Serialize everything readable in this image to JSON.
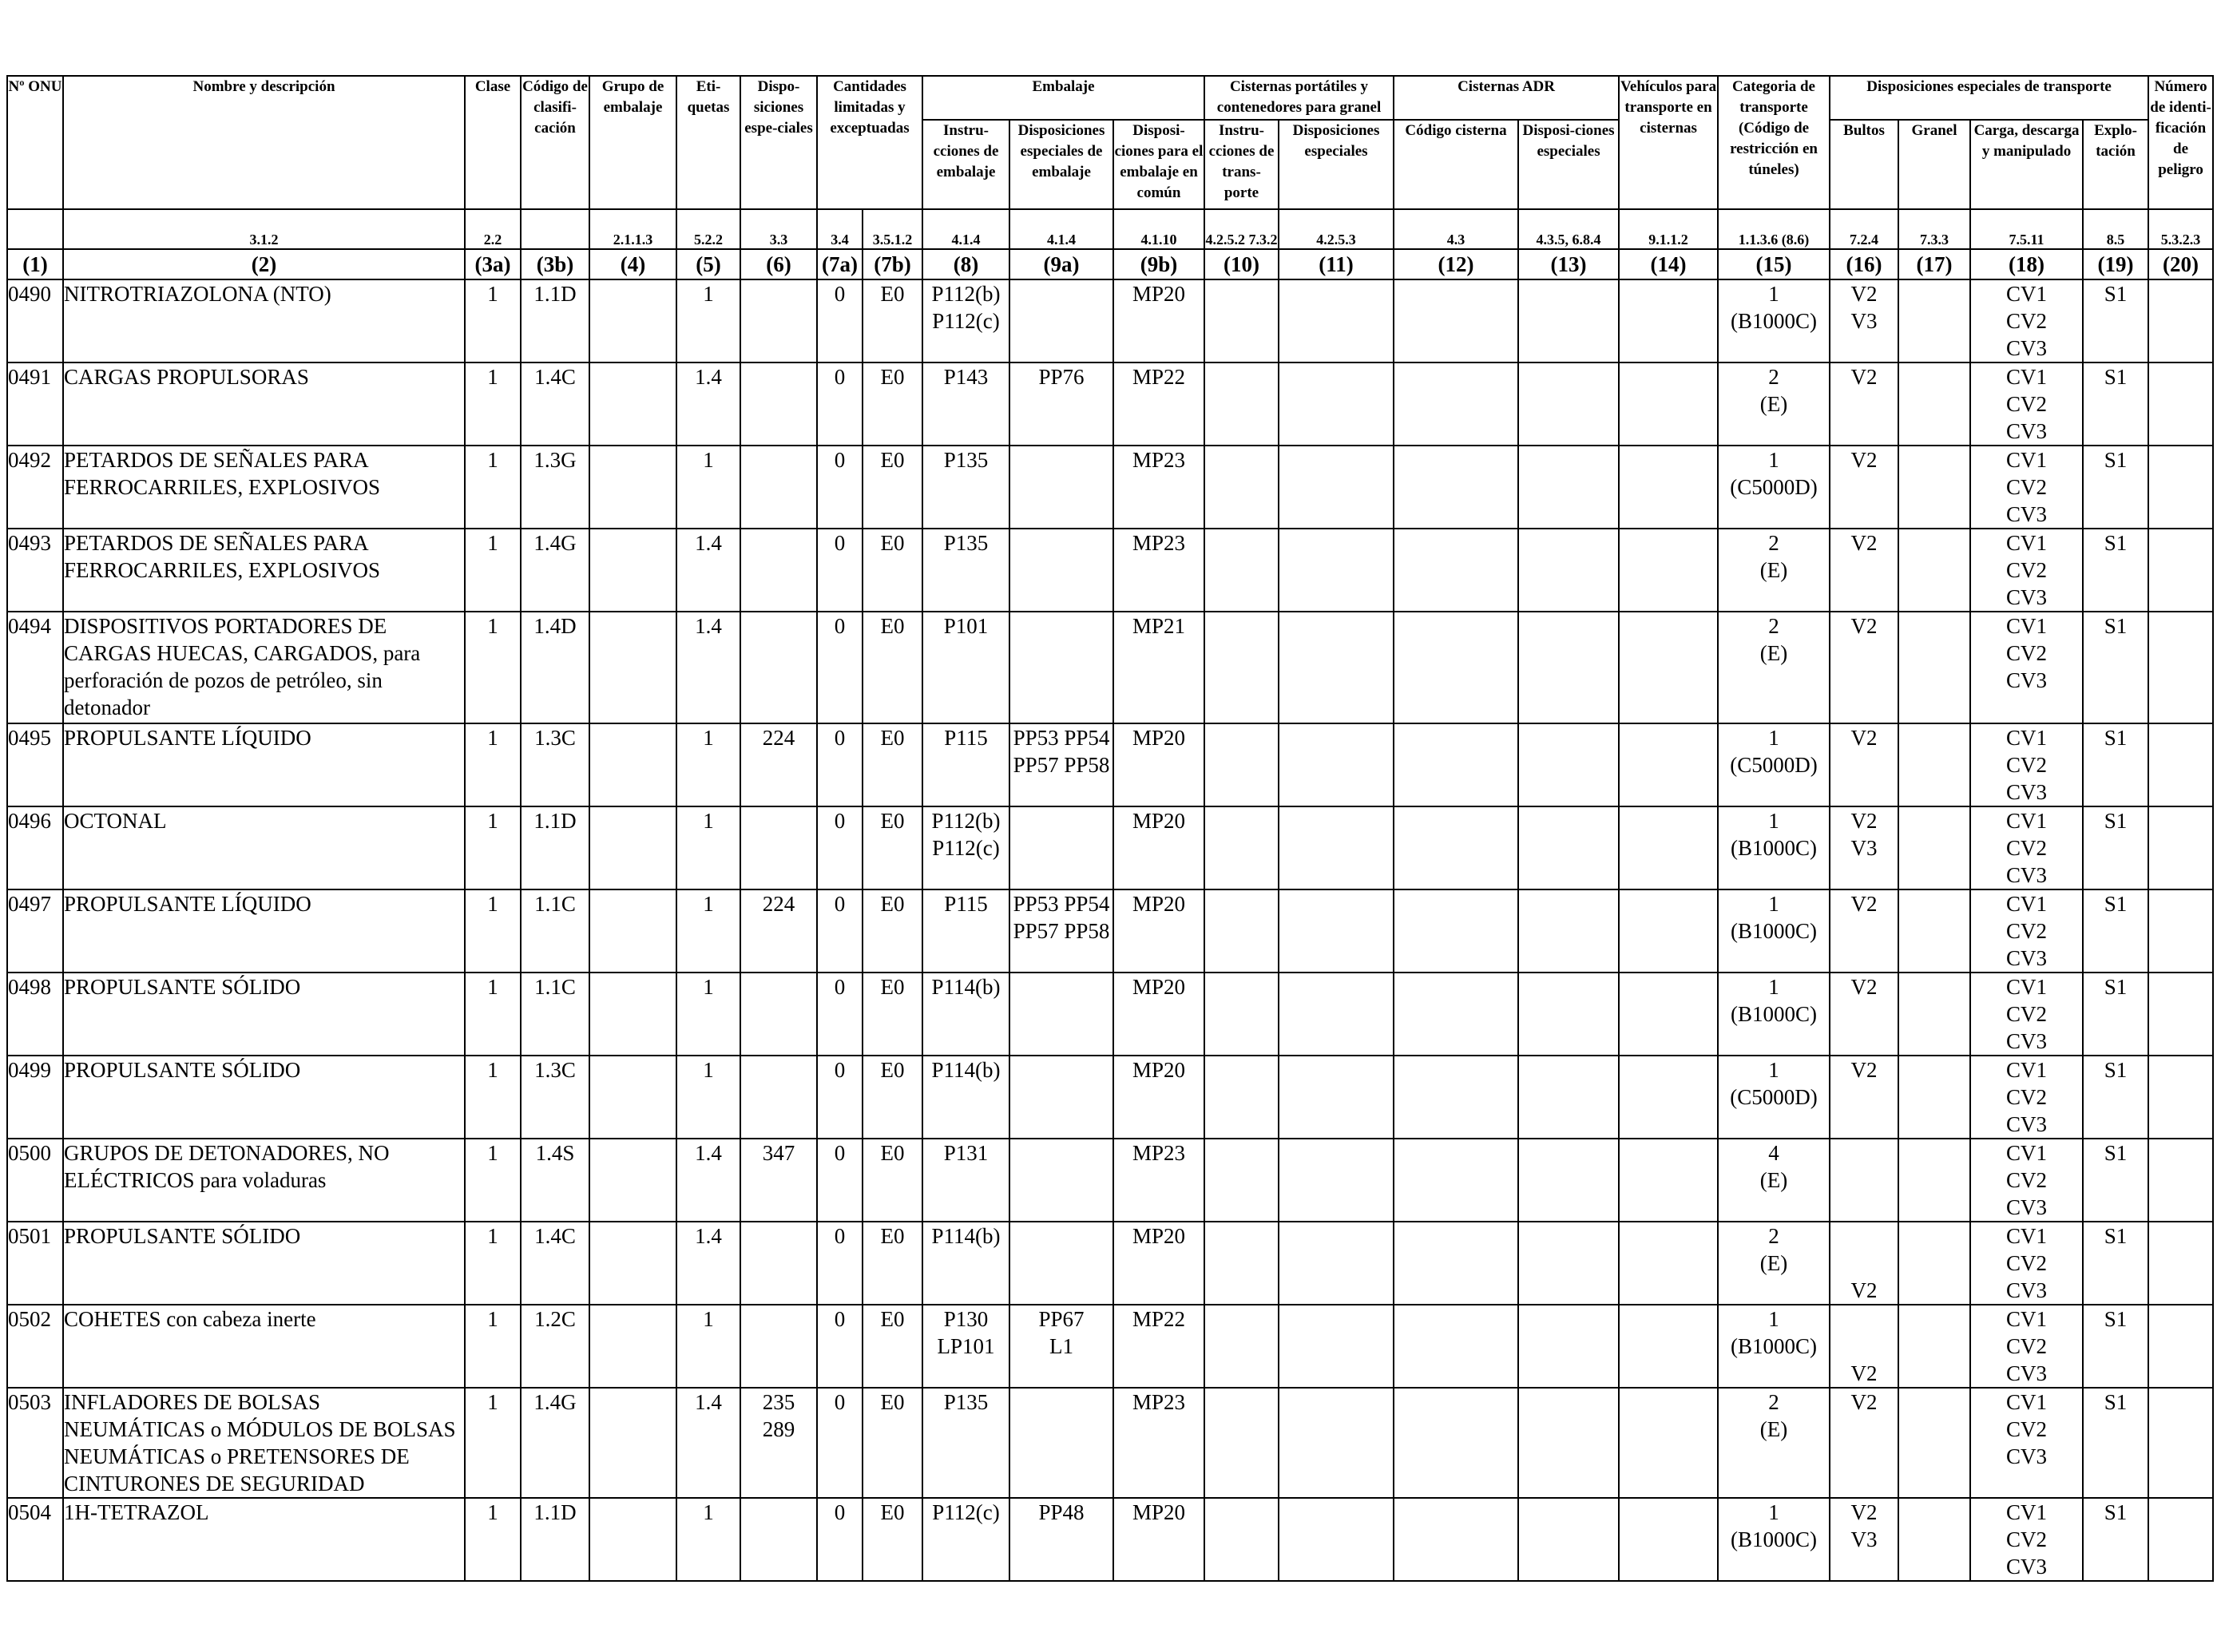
{
  "headers": {
    "un": "Nº ONU",
    "name": "Nombre y descripción",
    "class": "Clase",
    "code": "Código de clasifi-cación",
    "pg": "Grupo de embalaje",
    "labels": "Eti-quetas",
    "special": "Dispo-siciones espe-ciales",
    "lq_group": "Cantidades limitadas y exceptuadas",
    "packaging_group": "Embalaje",
    "pack_instr": "Instru-cciones de embalaje",
    "pack_special": "Disposiciones especiales de embalaje",
    "pack_mixed": "Disposi-ciones para el embalaje en común",
    "portable_group": "Cisternas portátiles y contenedores para granel",
    "portable_instr": "Instru-cciones de trans-porte",
    "portable_special": "Disposiciones especiales",
    "adr_group": "Cisternas ADR",
    "adr_code": "Código cisterna",
    "adr_special": "Disposi-ciones especiales",
    "vehicles": "Vehículos para transporte en cisternas",
    "category": "Categoria de transporte (Código de restricción en túneles)",
    "spec_group": "Disposiciones especiales de transporte",
    "spec_packages": "Bultos",
    "spec_bulk": "Granel",
    "spec_loading": "Carga, descarga y manipulado",
    "spec_operation": "Explo-tación",
    "hazard_id": "Número de identi-ficación de peligro"
  },
  "refs": {
    "name": "3.1.2",
    "class": "2.2",
    "pg": "2.1.1.3",
    "labels": "5.2.2",
    "special": "3.3",
    "lq": "3.4",
    "eq": "3.5.1.2",
    "pack_instr": "4.1.4",
    "pack_special": "4.1.4",
    "pack_mixed": "4.1.10",
    "portable_instr": "4.2.5.2 7.3.2",
    "portable_special": "4.2.5.3",
    "adr_code": "4.3",
    "adr_special": "4.3.5, 6.8.4",
    "vehicles": "9.1.1.2",
    "category": "1.1.3.6 (8.6)",
    "spec_packages": "7.2.4",
    "spec_bulk": "7.3.3",
    "spec_loading": "7.5.11",
    "spec_operation": "8.5",
    "hazard_id": "5.3.2.3"
  },
  "colnums": [
    "(1)",
    "(2)",
    "(3a)",
    "(3b)",
    "(4)",
    "(5)",
    "(6)",
    "(7a)",
    "(7b)",
    "(8)",
    "(9a)",
    "(9b)",
    "(10)",
    "(11)",
    "(12)",
    "(13)",
    "(14)",
    "(15)",
    "(16)",
    "(17)",
    "(18)",
    "(19)",
    "(20)"
  ],
  "rows": [
    {
      "c": [
        "0490",
        "NITROTRIAZOLONA (NTO)",
        "1",
        "1.1D",
        "",
        "1",
        "",
        "0",
        "E0",
        "P112(b)\nP112(c)",
        "",
        "MP20",
        "",
        "",
        "",
        "",
        "",
        "1\n(B1000C)",
        "V2\nV3",
        "",
        "CV1\nCV2\nCV3",
        "S1",
        ""
      ]
    },
    {
      "c": [
        "0491",
        "CARGAS PROPULSORAS",
        "1",
        "1.4C",
        "",
        "1.4",
        "",
        "0",
        "E0",
        "P143",
        "PP76",
        "MP22",
        "",
        "",
        "",
        "",
        "",
        "2\n(E)",
        "V2",
        "",
        "CV1\nCV2\nCV3",
        "S1",
        ""
      ]
    },
    {
      "c": [
        "0492",
        "PETARDOS DE SEÑALES PARA FERROCARRILES, EXPLOSIVOS",
        "1",
        "1.3G",
        "",
        "1",
        "",
        "0",
        "E0",
        "P135",
        "",
        "MP23",
        "",
        "",
        "",
        "",
        "",
        "1\n(C5000D)",
        "V2",
        "",
        "CV1\nCV2\nCV3",
        "S1",
        ""
      ]
    },
    {
      "c": [
        "0493",
        "PETARDOS DE SEÑALES PARA FERROCARRILES, EXPLOSIVOS",
        "1",
        "1.4G",
        "",
        "1.4",
        "",
        "0",
        "E0",
        "P135",
        "",
        "MP23",
        "",
        "",
        "",
        "",
        "",
        "2\n(E)",
        "V2",
        "",
        "CV1\nCV2\nCV3",
        "S1",
        ""
      ]
    },
    {
      "c": [
        "0494",
        "DISPOSITIVOS PORTADORES DE CARGAS HUECAS, CARGADOS, para perforación de pozos de petróleo, sin detonador",
        "1",
        "1.4D",
        "",
        "1.4",
        "",
        "0",
        "E0",
        "P101",
        "",
        "MP21",
        "",
        "",
        "",
        "",
        "",
        "2\n(E)",
        "V2",
        "",
        "CV1\nCV2\nCV3",
        "S1",
        ""
      ]
    },
    {
      "c": [
        "0495",
        "PROPULSANTE LÍQUIDO",
        "1",
        "1.3C",
        "",
        "1",
        "224",
        "0",
        "E0",
        "P115",
        "PP53 PP54\nPP57 PP58",
        "MP20",
        "",
        "",
        "",
        "",
        "",
        "1\n(C5000D)",
        "V2",
        "",
        "CV1\nCV2\nCV3",
        "S1",
        ""
      ]
    },
    {
      "c": [
        "0496",
        "OCTONAL",
        "1",
        "1.1D",
        "",
        "1",
        "",
        "0",
        "E0",
        "P112(b)\nP112(c)",
        "",
        "MP20",
        "",
        "",
        "",
        "",
        "",
        "1\n(B1000C)",
        "V2\nV3",
        "",
        "CV1\nCV2\nCV3",
        "S1",
        ""
      ]
    },
    {
      "c": [
        "0497",
        "PROPULSANTE LÍQUIDO",
        "1",
        "1.1C",
        "",
        "1",
        "224",
        "0",
        "E0",
        "P115",
        "PP53 PP54\nPP57 PP58",
        "MP20",
        "",
        "",
        "",
        "",
        "",
        "1\n(B1000C)",
        "V2",
        "",
        "CV1\nCV2\nCV3",
        "S1",
        ""
      ]
    },
    {
      "c": [
        "0498",
        "PROPULSANTE SÓLIDO",
        "1",
        "1.1C",
        "",
        "1",
        "",
        "0",
        "E0",
        "P114(b)",
        "",
        "MP20",
        "",
        "",
        "",
        "",
        "",
        "1\n(B1000C)",
        "V2",
        "",
        "CV1\nCV2\nCV3",
        "S1",
        ""
      ]
    },
    {
      "c": [
        "0499",
        "PROPULSANTE SÓLIDO",
        "1",
        "1.3C",
        "",
        "1",
        "",
        "0",
        "E0",
        "P114(b)",
        "",
        "MP20",
        "",
        "",
        "",
        "",
        "",
        "1\n(C5000D)",
        "V2",
        "",
        "CV1\nCV2\nCV3",
        "S1",
        ""
      ]
    },
    {
      "c": [
        "0500",
        "GRUPOS DE DETONADORES, NO ELÉCTRICOS para voladuras",
        "1",
        "1.4S",
        "",
        "1.4",
        "347",
        "0",
        "E0",
        "P131",
        "",
        "MP23",
        "",
        "",
        "",
        "",
        "",
        "4\n(E)",
        "",
        "",
        "CV1\nCV2\nCV3",
        "S1",
        ""
      ]
    },
    {
      "c": [
        "0501",
        "PROPULSANTE SÓLIDO",
        "1",
        "1.4C",
        "",
        "1.4",
        "",
        "0",
        "E0",
        "P114(b)",
        "",
        "MP20",
        "",
        "",
        "",
        "",
        "",
        "2\n(E)",
        "\n\nV2",
        "",
        "CV1\nCV2\nCV3",
        "S1",
        ""
      ]
    },
    {
      "c": [
        "0502",
        "COHETES con cabeza inerte",
        "1",
        "1.2C",
        "",
        "1",
        "",
        "0",
        "E0",
        "P130\nLP101",
        "PP67\nL1",
        "MP22",
        "",
        "",
        "",
        "",
        "",
        "1\n(B1000C)",
        "\n\nV2",
        "",
        "CV1\nCV2\nCV3",
        "S1",
        ""
      ]
    },
    {
      "c": [
        "0503",
        "INFLADORES DE BOLSAS NEUMÁTICAS o MÓDULOS DE BOLSAS NEUMÁTICAS o PRETENSORES DE CINTURONES DE SEGURIDAD",
        "1",
        "1.4G",
        "",
        "1.4",
        "235\n289",
        "0",
        "E0",
        "P135",
        "",
        "MP23",
        "",
        "",
        "",
        "",
        "",
        "2\n(E)",
        "V2",
        "",
        "CV1\nCV2\nCV3",
        "S1",
        ""
      ]
    },
    {
      "c": [
        "0504",
        "1H-TETRAZOL",
        "1",
        "1.1D",
        "",
        "1",
        "",
        "0",
        "E0",
        "P112(c)",
        "PP48",
        "MP20",
        "",
        "",
        "",
        "",
        "",
        "1\n(B1000C)",
        "V2\nV3",
        "",
        "CV1\nCV2\nCV3",
        "S1",
        ""
      ]
    }
  ]
}
